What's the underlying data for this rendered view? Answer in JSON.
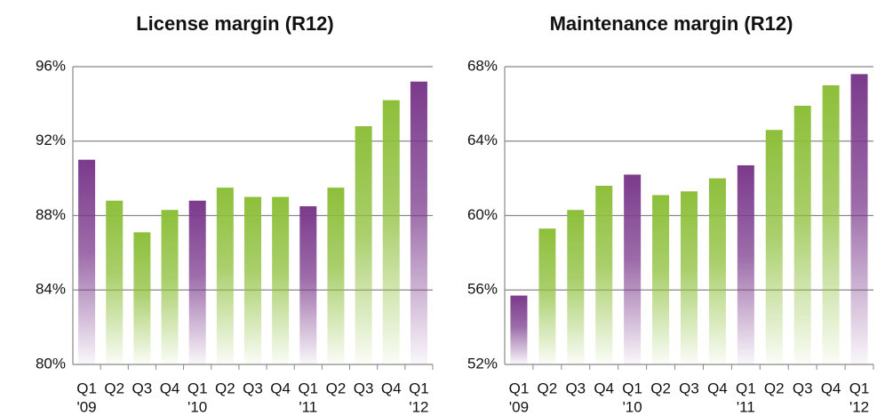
{
  "chart_data": [
    {
      "type": "bar",
      "title": "License margin (R12)",
      "categories": [
        "Q1",
        "Q2",
        "Q3",
        "Q4",
        "Q1",
        "Q2",
        "Q3",
        "Q4",
        "Q1",
        "Q2",
        "Q3",
        "Q4",
        "Q1"
      ],
      "years": [
        "'09",
        null,
        null,
        null,
        "'10",
        null,
        null,
        null,
        "'11",
        null,
        null,
        null,
        "'12"
      ],
      "values": [
        91.0,
        88.8,
        87.1,
        88.3,
        88.8,
        89.5,
        89.0,
        89.0,
        88.5,
        89.5,
        92.8,
        94.2,
        95.2
      ],
      "colors": [
        "#7b3a8c",
        "#8dbf3a",
        "#8dbf3a",
        "#8dbf3a",
        "#7b3a8c",
        "#8dbf3a",
        "#8dbf3a",
        "#8dbf3a",
        "#7b3a8c",
        "#8dbf3a",
        "#8dbf3a",
        "#8dbf3a",
        "#7b3a8c"
      ],
      "ylim": [
        80,
        96
      ],
      "yticks": [
        {
          "value": 80,
          "label": "80%"
        },
        {
          "value": 84,
          "label": "84%"
        },
        {
          "value": 88,
          "label": "88%"
        },
        {
          "value": 92,
          "label": "92%"
        },
        {
          "value": 96,
          "label": "96%"
        }
      ],
      "grid": true
    },
    {
      "type": "bar",
      "title": "Maintenance margin (R12)",
      "categories": [
        "Q1",
        "Q2",
        "Q3",
        "Q4",
        "Q1",
        "Q2",
        "Q3",
        "Q4",
        "Q1",
        "Q2",
        "Q3",
        "Q4",
        "Q1"
      ],
      "years": [
        "'09",
        null,
        null,
        null,
        "'10",
        null,
        null,
        null,
        "'11",
        null,
        null,
        null,
        "'12"
      ],
      "values": [
        55.7,
        59.3,
        60.3,
        61.6,
        62.2,
        61.1,
        61.3,
        62.0,
        62.7,
        64.6,
        65.9,
        67.0,
        67.6
      ],
      "colors": [
        "#7b3a8c",
        "#8dbf3a",
        "#8dbf3a",
        "#8dbf3a",
        "#7b3a8c",
        "#8dbf3a",
        "#8dbf3a",
        "#8dbf3a",
        "#7b3a8c",
        "#8dbf3a",
        "#8dbf3a",
        "#8dbf3a",
        "#7b3a8c"
      ],
      "ylim": [
        52,
        68
      ],
      "yticks": [
        {
          "value": 52,
          "label": "52%"
        },
        {
          "value": 56,
          "label": "56%"
        },
        {
          "value": 60,
          "label": "60%"
        },
        {
          "value": 64,
          "label": "64%"
        },
        {
          "value": 68,
          "label": "68%"
        }
      ],
      "grid": true
    }
  ]
}
